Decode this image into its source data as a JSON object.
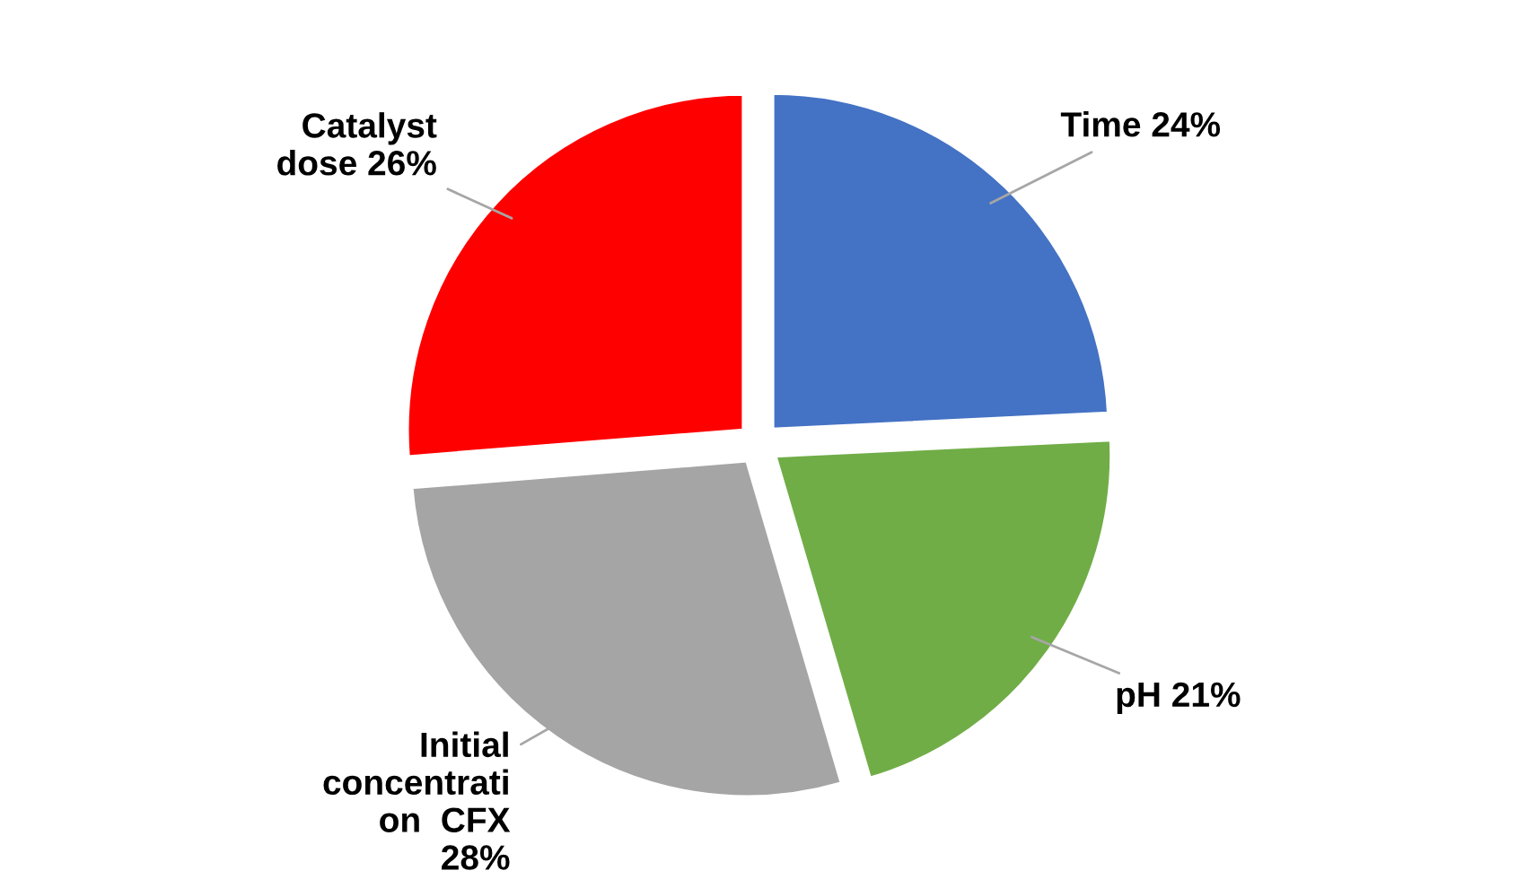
{
  "chart_data": {
    "type": "pie",
    "categories": [
      "Time",
      "pH",
      "Initial\nconcentrati\non  CFX",
      "Catalyst\ndose"
    ],
    "values": [
      24,
      21,
      28,
      26
    ],
    "value_labels": [
      "24%",
      "21%",
      "28%",
      "26%"
    ],
    "colors": [
      "#4472c4",
      "#70ad47",
      "#a5a5a5",
      "#ff0000"
    ],
    "legend": false
  }
}
